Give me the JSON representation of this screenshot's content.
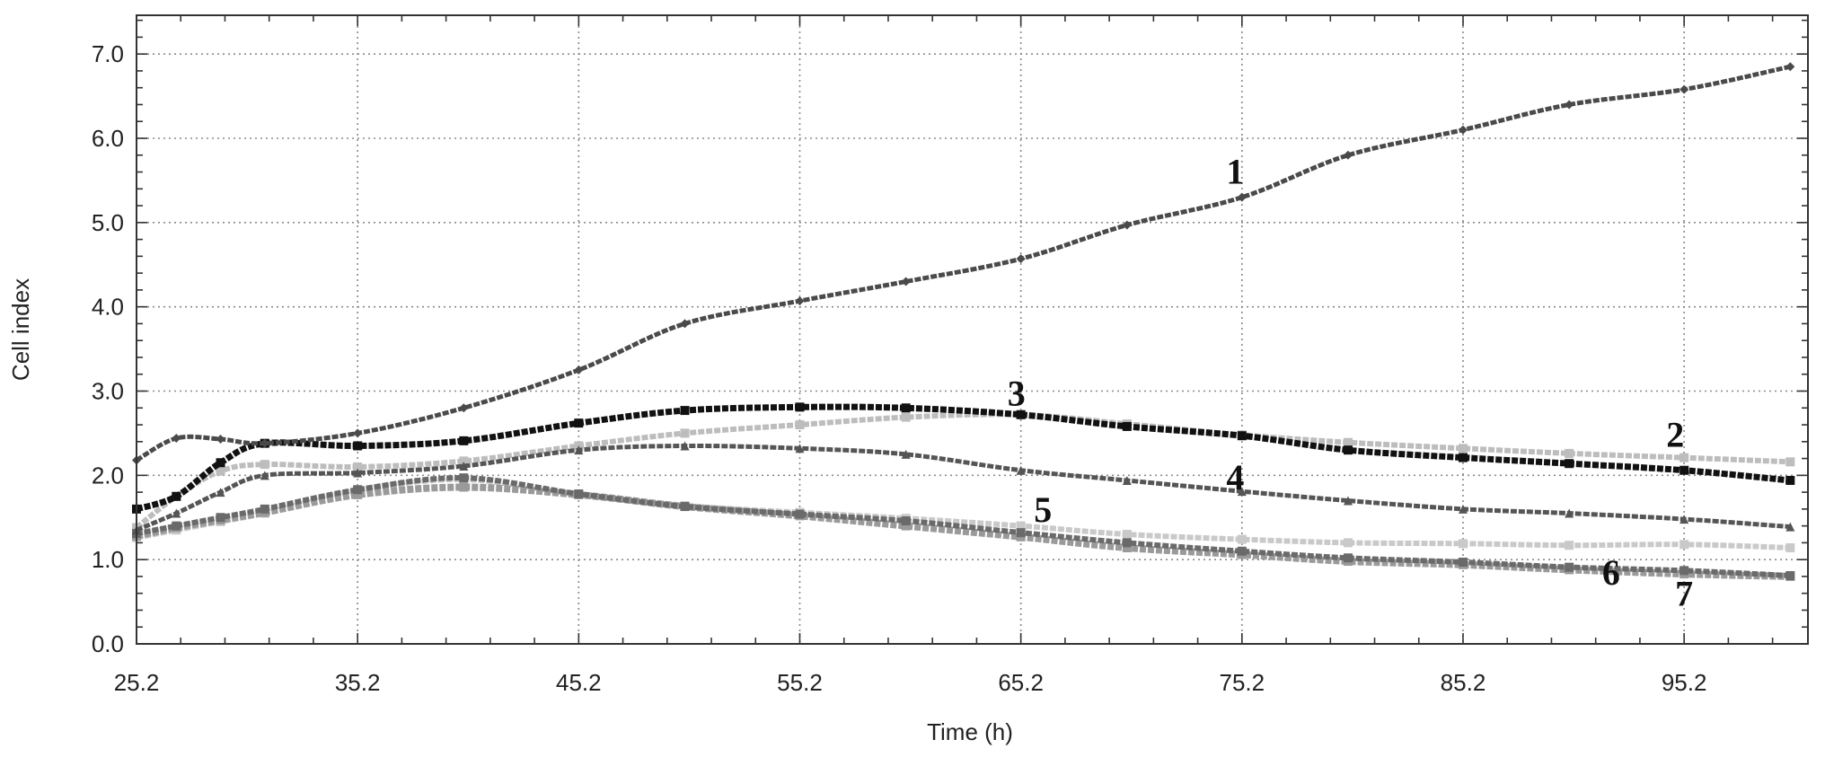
{
  "chart_data": {
    "type": "line",
    "xlabel": "Time (h)",
    "ylabel": "Cell index",
    "xlim": [
      25.2,
      100.8
    ],
    "ylim": [
      0,
      7.46
    ],
    "grid": true,
    "x_ticks": [
      25.2,
      35.2,
      45.2,
      55.2,
      65.2,
      75.2,
      85.2,
      95.2
    ],
    "x_tick_labels": [
      "25.2",
      "35.2",
      "45.2",
      "55.2",
      "65.2",
      "75.2",
      "85.2",
      "95.2"
    ],
    "y_ticks": [
      0,
      1,
      2,
      3,
      4,
      5,
      6,
      7
    ],
    "y_tick_labels": [
      "0.0",
      "1.0",
      "2.0",
      "3.0",
      "4.0",
      "5.0",
      "6.0",
      "7.0"
    ],
    "x": [
      25.2,
      27,
      29,
      31,
      35.2,
      40,
      45.2,
      50,
      55.2,
      60,
      65.2,
      70,
      75.2,
      80,
      85.2,
      90,
      95.2,
      100
    ],
    "series": [
      {
        "name": "1",
        "color": "#4a4a4a",
        "marker": "diamond",
        "values": [
          2.18,
          2.44,
          2.43,
          2.38,
          2.5,
          2.8,
          3.25,
          3.8,
          4.07,
          4.3,
          4.57,
          4.97,
          5.3,
          5.8,
          6.1,
          6.4,
          6.58,
          6.85
        ]
      },
      {
        "name": "2",
        "color": "#bdbdbd",
        "marker": "square",
        "values": [
          1.38,
          1.75,
          2.05,
          2.13,
          2.1,
          2.17,
          2.35,
          2.5,
          2.6,
          2.69,
          2.72,
          2.61,
          2.48,
          2.39,
          2.32,
          2.26,
          2.21,
          2.16
        ]
      },
      {
        "name": "3",
        "color": "#111111",
        "marker": "square",
        "values": [
          1.6,
          1.75,
          2.15,
          2.38,
          2.35,
          2.41,
          2.62,
          2.77,
          2.81,
          2.8,
          2.72,
          2.58,
          2.47,
          2.3,
          2.21,
          2.14,
          2.06,
          1.94
        ]
      },
      {
        "name": "4",
        "color": "#555555",
        "marker": "triangle",
        "values": [
          1.35,
          1.55,
          1.8,
          2.0,
          2.03,
          2.11,
          2.3,
          2.35,
          2.32,
          2.25,
          2.06,
          1.94,
          1.81,
          1.7,
          1.6,
          1.55,
          1.48,
          1.39
        ]
      },
      {
        "name": "5",
        "color": "#c9c9c9",
        "marker": "square",
        "values": [
          1.26,
          1.35,
          1.45,
          1.55,
          1.82,
          1.95,
          1.77,
          1.64,
          1.56,
          1.49,
          1.4,
          1.3,
          1.24,
          1.2,
          1.19,
          1.17,
          1.18,
          1.14
        ]
      },
      {
        "name": "6",
        "color": "#6a6a6a",
        "marker": "square",
        "values": [
          1.31,
          1.4,
          1.5,
          1.6,
          1.83,
          1.97,
          1.78,
          1.63,
          1.54,
          1.46,
          1.32,
          1.2,
          1.1,
          1.02,
          0.97,
          0.91,
          0.87,
          0.81
        ]
      },
      {
        "name": "7",
        "color": "#9a9a9a",
        "marker": "square",
        "values": [
          1.28,
          1.38,
          1.47,
          1.56,
          1.77,
          1.86,
          1.77,
          1.63,
          1.52,
          1.4,
          1.27,
          1.14,
          1.06,
          0.98,
          0.94,
          0.88,
          0.83,
          0.8
        ]
      }
    ]
  }
}
